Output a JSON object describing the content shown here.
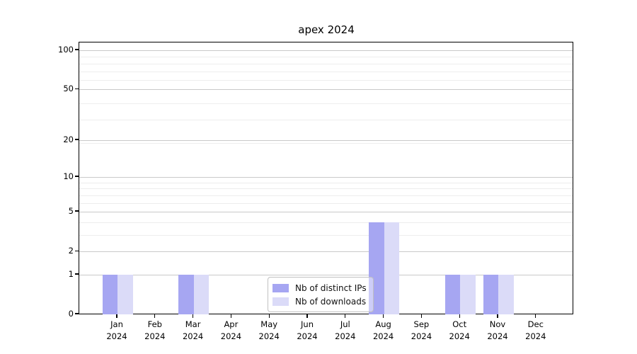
{
  "chart_data": {
    "type": "bar",
    "title": "apex 2024",
    "xlabel": "",
    "ylabel": "",
    "year": "2024",
    "categories": [
      "Jan 2024",
      "Feb 2024",
      "Mar 2024",
      "Apr 2024",
      "May 2024",
      "Jun 2024",
      "Jul 2024",
      "Aug 2024",
      "Sep 2024",
      "Oct 2024",
      "Nov 2024",
      "Dec 2024"
    ],
    "month_names": [
      "Jan",
      "Feb",
      "Mar",
      "Apr",
      "May",
      "Jun",
      "Jul",
      "Aug",
      "Sep",
      "Oct",
      "Nov",
      "Dec"
    ],
    "series": [
      {
        "name": "Nb of distinct IPs",
        "color": "#a6a6f2",
        "values": [
          1,
          0,
          1,
          0,
          0,
          0,
          0,
          4,
          0,
          1,
          1,
          0
        ]
      },
      {
        "name": "Nb of downloads",
        "color": "#dbdbf8",
        "values": [
          1,
          0,
          1,
          0,
          0,
          0,
          0,
          4,
          0,
          1,
          1,
          0
        ]
      }
    ],
    "y_axis": {
      "scale": "log(value+1)",
      "major_ticks": [
        0,
        1,
        2,
        5,
        10,
        20,
        50,
        100
      ],
      "minor_ticks": [
        3,
        4,
        6,
        7,
        8,
        9,
        19,
        29,
        39,
        59,
        69,
        79,
        89
      ],
      "ylim_top_value": 100
    },
    "legend_position": "lower center",
    "grid": true,
    "colors": {
      "grid_major": "#c9c9c9",
      "grid_minor": "#ededed",
      "spine": "#000000",
      "background": "#ffffff"
    }
  }
}
